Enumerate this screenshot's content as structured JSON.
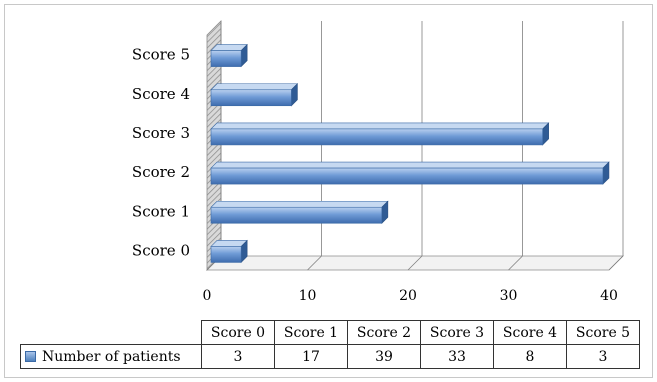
{
  "chart_data": {
    "type": "bar",
    "orientation": "horizontal",
    "style": "3d",
    "categories": [
      "Score 0",
      "Score 1",
      "Score 2",
      "Score 3",
      "Score 4",
      "Score 5"
    ],
    "series": [
      {
        "name": "Number of patients",
        "values": [
          3,
          17,
          39,
          33,
          8,
          3
        ],
        "color": "#4f81bd"
      }
    ],
    "xlim": [
      0,
      40
    ],
    "xticks": [
      0,
      10,
      20,
      30,
      40
    ],
    "grid": true,
    "data_table": true,
    "title": "",
    "xlabel": "",
    "ylabel": ""
  }
}
